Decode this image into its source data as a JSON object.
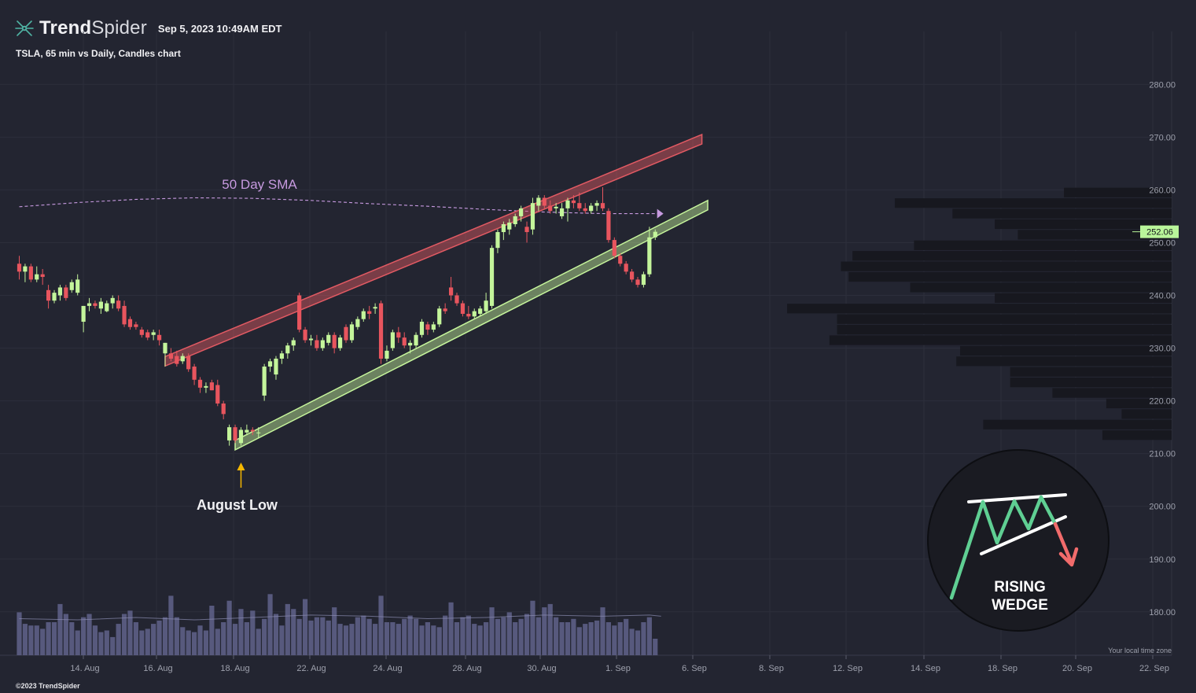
{
  "header": {
    "brand_bold": "Trend",
    "brand_light": "Spider",
    "timestamp": "Sep 5, 2023 10:49AM EDT",
    "subtitle": "TSLA, 65 min vs Daily, Candles chart",
    "copyright": "©2023 TrendSpider"
  },
  "colors": {
    "background": "#232531",
    "bull": "#c4f59b",
    "bear": "#e8555e",
    "resistance_band": "#e25a63",
    "support_band": "#c6f59c",
    "sma": "#c79ae0",
    "volume": "#5d5f86",
    "volume_profile": "#17181f",
    "price_badge": "#b9f59a",
    "annotation_arrow": "#f5b700",
    "badge_up": "#5fcf93",
    "badge_down": "#f16b6b"
  },
  "chart_data": {
    "type": "candlestick",
    "symbol": "TSLA",
    "interval": "65 min",
    "x_tick_labels": [
      "14. Aug",
      "16. Aug",
      "18. Aug",
      "22. Aug",
      "24. Aug",
      "28. Aug",
      "30. Aug",
      "1. Sep",
      "6. Sep",
      "8. Sep",
      "12. Sep",
      "14. Sep",
      "18. Sep",
      "20. Sep",
      "22. Sep"
    ],
    "y_ticks": [
      180,
      190,
      200,
      210,
      220,
      230,
      240,
      250,
      260,
      270,
      280
    ],
    "ylim": [
      172,
      289
    ],
    "last_price": "252.06",
    "local_time_note": "Your local time zone",
    "candles": [
      {
        "i": 0,
        "o": 246.0,
        "h": 247.5,
        "l": 243.0,
        "c": 244.5
      },
      {
        "i": 1,
        "o": 244.5,
        "h": 246.0,
        "l": 242.5,
        "c": 245.5
      },
      {
        "i": 2,
        "o": 245.5,
        "h": 246.0,
        "l": 242.5,
        "c": 243.0
      },
      {
        "i": 3,
        "o": 243.0,
        "h": 245.5,
        "l": 242.5,
        "c": 244.0
      },
      {
        "i": 4,
        "o": 244.0,
        "h": 245.0,
        "l": 242.0,
        "c": 243.5
      },
      {
        "i": 5,
        "o": 241.0,
        "h": 242.0,
        "l": 237.5,
        "c": 239.0
      },
      {
        "i": 6,
        "o": 239.0,
        "h": 241.0,
        "l": 238.5,
        "c": 240.5
      },
      {
        "i": 7,
        "o": 240.0,
        "h": 242.0,
        "l": 239.0,
        "c": 241.5
      },
      {
        "i": 8,
        "o": 241.5,
        "h": 242.0,
        "l": 239.0,
        "c": 239.5
      },
      {
        "i": 9,
        "o": 241.0,
        "h": 243.0,
        "l": 240.5,
        "c": 242.5
      },
      {
        "i": 10,
        "o": 240.5,
        "h": 244.0,
        "l": 240.0,
        "c": 243.0
      },
      {
        "i": 11,
        "o": 235.0,
        "h": 238.0,
        "l": 233.0,
        "c": 238.0
      },
      {
        "i": 12,
        "o": 238.0,
        "h": 239.5,
        "l": 237.0,
        "c": 238.5
      },
      {
        "i": 13,
        "o": 238.5,
        "h": 239.0,
        "l": 237.5,
        "c": 238.0
      },
      {
        "i": 14,
        "o": 237.5,
        "h": 239.5,
        "l": 236.5,
        "c": 238.8
      },
      {
        "i": 15,
        "o": 237.0,
        "h": 239.0,
        "l": 236.8,
        "c": 238.5
      },
      {
        "i": 16,
        "o": 238.5,
        "h": 240.0,
        "l": 237.5,
        "c": 239.5
      },
      {
        "i": 17,
        "o": 239.0,
        "h": 240.0,
        "l": 237.0,
        "c": 237.5
      },
      {
        "i": 18,
        "o": 238.0,
        "h": 239.0,
        "l": 234.0,
        "c": 234.5
      },
      {
        "i": 19,
        "o": 235.5,
        "h": 236.0,
        "l": 233.5,
        "c": 234.0
      },
      {
        "i": 20,
        "o": 234.5,
        "h": 235.0,
        "l": 233.5,
        "c": 234.0
      },
      {
        "i": 21,
        "o": 233.5,
        "h": 234.0,
        "l": 232.0,
        "c": 232.5
      },
      {
        "i": 22,
        "o": 233.0,
        "h": 233.5,
        "l": 231.5,
        "c": 232.0
      },
      {
        "i": 23,
        "o": 232.5,
        "h": 233.5,
        "l": 231.5,
        "c": 233.0
      },
      {
        "i": 24,
        "o": 232.5,
        "h": 233.5,
        "l": 230.5,
        "c": 231.5
      },
      {
        "i": 25,
        "o": 229.0,
        "h": 231.0,
        "l": 226.5,
        "c": 231.0
      },
      {
        "i": 26,
        "o": 229.0,
        "h": 230.0,
        "l": 227.5,
        "c": 228.0
      },
      {
        "i": 27,
        "o": 228.5,
        "h": 229.5,
        "l": 226.5,
        "c": 227.0
      },
      {
        "i": 28,
        "o": 227.5,
        "h": 229.0,
        "l": 227.0,
        "c": 228.5
      },
      {
        "i": 29,
        "o": 228.5,
        "h": 229.0,
        "l": 225.5,
        "c": 226.0
      },
      {
        "i": 30,
        "o": 226.5,
        "h": 227.0,
        "l": 223.0,
        "c": 224.0
      },
      {
        "i": 31,
        "o": 224.0,
        "h": 224.5,
        "l": 221.5,
        "c": 222.5
      },
      {
        "i": 32,
        "o": 222.5,
        "h": 223.5,
        "l": 221.5,
        "c": 222.8
      },
      {
        "i": 33,
        "o": 223.5,
        "h": 224.0,
        "l": 222.0,
        "c": 222.0
      },
      {
        "i": 34,
        "o": 223.0,
        "h": 224.0,
        "l": 219.0,
        "c": 219.5
      },
      {
        "i": 35,
        "o": 219.5,
        "h": 220.0,
        "l": 216.5,
        "c": 217.5
      },
      {
        "i": 36,
        "o": 212.5,
        "h": 215.5,
        "l": 211.5,
        "c": 215.0
      },
      {
        "i": 37,
        "o": 215.0,
        "h": 215.5,
        "l": 212.0,
        "c": 212.5
      },
      {
        "i": 38,
        "o": 212.0,
        "h": 215.0,
        "l": 211.5,
        "c": 214.5
      },
      {
        "i": 39,
        "o": 214.0,
        "h": 215.5,
        "l": 213.5,
        "c": 214.5
      },
      {
        "i": 40,
        "o": 214.5,
        "h": 215.0,
        "l": 213.5,
        "c": 214.2
      },
      {
        "i": 41,
        "o": 214.0,
        "h": 215.0,
        "l": 213.0,
        "c": 214.0
      },
      {
        "i": 42,
        "o": 221.0,
        "h": 227.0,
        "l": 220.0,
        "c": 226.5
      },
      {
        "i": 43,
        "o": 226.5,
        "h": 228.0,
        "l": 225.5,
        "c": 227.5
      },
      {
        "i": 44,
        "o": 225.0,
        "h": 228.5,
        "l": 224.0,
        "c": 228.0
      },
      {
        "i": 45,
        "o": 228.0,
        "h": 229.5,
        "l": 227.0,
        "c": 229.0
      },
      {
        "i": 46,
        "o": 229.0,
        "h": 231.0,
        "l": 228.0,
        "c": 230.5
      },
      {
        "i": 47,
        "o": 230.5,
        "h": 232.0,
        "l": 229.5,
        "c": 231.5
      },
      {
        "i": 48,
        "o": 240.0,
        "h": 240.5,
        "l": 233.0,
        "c": 233.5
      },
      {
        "i": 49,
        "o": 233.5,
        "h": 234.0,
        "l": 231.0,
        "c": 231.5
      },
      {
        "i": 50,
        "o": 231.5,
        "h": 232.5,
        "l": 230.5,
        "c": 231.8
      },
      {
        "i": 51,
        "o": 231.5,
        "h": 232.5,
        "l": 229.5,
        "c": 230.0
      },
      {
        "i": 52,
        "o": 230.0,
        "h": 232.0,
        "l": 229.5,
        "c": 231.5
      },
      {
        "i": 53,
        "o": 231.0,
        "h": 233.0,
        "l": 230.5,
        "c": 232.5
      },
      {
        "i": 54,
        "o": 232.5,
        "h": 233.0,
        "l": 229.0,
        "c": 230.0
      },
      {
        "i": 55,
        "o": 230.0,
        "h": 232.5,
        "l": 229.5,
        "c": 232.0
      },
      {
        "i": 56,
        "o": 234.0,
        "h": 234.5,
        "l": 231.0,
        "c": 231.5
      },
      {
        "i": 57,
        "o": 231.5,
        "h": 235.0,
        "l": 231.0,
        "c": 234.5
      },
      {
        "i": 58,
        "o": 234.0,
        "h": 236.0,
        "l": 233.5,
        "c": 235.5
      },
      {
        "i": 59,
        "o": 235.5,
        "h": 237.5,
        "l": 235.0,
        "c": 237.0
      },
      {
        "i": 60,
        "o": 237.0,
        "h": 238.0,
        "l": 235.5,
        "c": 236.5
      },
      {
        "i": 61,
        "o": 237.5,
        "h": 238.5,
        "l": 236.5,
        "c": 237.8
      },
      {
        "i": 62,
        "o": 238.5,
        "h": 239.0,
        "l": 227.0,
        "c": 228.0
      },
      {
        "i": 63,
        "o": 228.0,
        "h": 230.5,
        "l": 227.5,
        "c": 229.5
      },
      {
        "i": 64,
        "o": 230.0,
        "h": 233.5,
        "l": 229.5,
        "c": 233.0
      },
      {
        "i": 65,
        "o": 233.0,
        "h": 234.0,
        "l": 231.0,
        "c": 232.0
      },
      {
        "i": 66,
        "o": 232.0,
        "h": 233.0,
        "l": 230.0,
        "c": 230.5
      },
      {
        "i": 67,
        "o": 230.5,
        "h": 231.5,
        "l": 229.0,
        "c": 231.0
      },
      {
        "i": 68,
        "o": 230.5,
        "h": 233.0,
        "l": 230.0,
        "c": 232.5
      },
      {
        "i": 69,
        "o": 232.5,
        "h": 235.5,
        "l": 232.0,
        "c": 235.0
      },
      {
        "i": 70,
        "o": 234.5,
        "h": 235.0,
        "l": 232.5,
        "c": 233.5
      },
      {
        "i": 71,
        "o": 233.5,
        "h": 235.0,
        "l": 233.0,
        "c": 234.5
      },
      {
        "i": 72,
        "o": 234.5,
        "h": 238.0,
        "l": 234.0,
        "c": 237.5
      },
      {
        "i": 73,
        "o": 237.5,
        "h": 238.5,
        "l": 236.5,
        "c": 237.0
      },
      {
        "i": 74,
        "o": 241.5,
        "h": 243.5,
        "l": 239.0,
        "c": 240.0
      },
      {
        "i": 75,
        "o": 240.0,
        "h": 240.5,
        "l": 238.0,
        "c": 238.5
      },
      {
        "i": 76,
        "o": 238.5,
        "h": 239.0,
        "l": 236.0,
        "c": 236.5
      },
      {
        "i": 77,
        "o": 236.5,
        "h": 238.0,
        "l": 235.5,
        "c": 236.0
      },
      {
        "i": 78,
        "o": 236.0,
        "h": 237.5,
        "l": 235.5,
        "c": 237.0
      },
      {
        "i": 79,
        "o": 236.5,
        "h": 238.0,
        "l": 236.0,
        "c": 237.5
      },
      {
        "i": 80,
        "o": 237.0,
        "h": 240.5,
        "l": 236.5,
        "c": 239.0
      },
      {
        "i": 81,
        "o": 238.0,
        "h": 249.5,
        "l": 237.5,
        "c": 249.0
      },
      {
        "i": 82,
        "o": 249.0,
        "h": 252.5,
        "l": 248.0,
        "c": 252.0
      },
      {
        "i": 83,
        "o": 252.0,
        "h": 254.0,
        "l": 250.5,
        "c": 253.5
      },
      {
        "i": 84,
        "o": 252.5,
        "h": 254.5,
        "l": 251.5,
        "c": 253.8
      },
      {
        "i": 85,
        "o": 253.5,
        "h": 255.5,
        "l": 253.0,
        "c": 255.0
      },
      {
        "i": 86,
        "o": 255.0,
        "h": 257.0,
        "l": 254.0,
        "c": 256.5
      },
      {
        "i": 87,
        "o": 253.0,
        "h": 254.0,
        "l": 250.0,
        "c": 252.0
      },
      {
        "i": 88,
        "o": 252.5,
        "h": 258.5,
        "l": 251.5,
        "c": 257.5
      },
      {
        "i": 89,
        "o": 257.0,
        "h": 259.0,
        "l": 256.0,
        "c": 258.5
      },
      {
        "i": 90,
        "o": 258.5,
        "h": 259.0,
        "l": 256.5,
        "c": 257.0
      },
      {
        "i": 91,
        "o": 257.0,
        "h": 258.0,
        "l": 255.5,
        "c": 256.0
      },
      {
        "i": 92,
        "o": 256.5,
        "h": 257.5,
        "l": 255.5,
        "c": 256.8
      },
      {
        "i": 93,
        "o": 255.0,
        "h": 257.5,
        "l": 254.5,
        "c": 256.5
      },
      {
        "i": 94,
        "o": 256.5,
        "h": 258.5,
        "l": 254.0,
        "c": 258.0
      },
      {
        "i": 95,
        "o": 258.0,
        "h": 259.0,
        "l": 256.5,
        "c": 257.5
      },
      {
        "i": 96,
        "o": 257.5,
        "h": 259.5,
        "l": 256.0,
        "c": 256.5
      },
      {
        "i": 97,
        "o": 256.5,
        "h": 257.5,
        "l": 255.5,
        "c": 256.0
      },
      {
        "i": 98,
        "o": 256.0,
        "h": 257.5,
        "l": 255.5,
        "c": 257.0
      },
      {
        "i": 99,
        "o": 257.0,
        "h": 258.0,
        "l": 256.0,
        "c": 257.5
      },
      {
        "i": 100,
        "o": 257.5,
        "h": 260.5,
        "l": 256.0,
        "c": 256.5
      },
      {
        "i": 101,
        "o": 256.0,
        "h": 256.5,
        "l": 250.0,
        "c": 250.5
      },
      {
        "i": 102,
        "o": 250.5,
        "h": 251.0,
        "l": 247.0,
        "c": 247.5
      },
      {
        "i": 103,
        "o": 247.5,
        "h": 248.0,
        "l": 245.5,
        "c": 246.0
      },
      {
        "i": 104,
        "o": 246.0,
        "h": 246.5,
        "l": 244.0,
        "c": 244.5
      },
      {
        "i": 105,
        "o": 244.5,
        "h": 245.0,
        "l": 242.5,
        "c": 243.0
      },
      {
        "i": 106,
        "o": 243.0,
        "h": 243.5,
        "l": 241.5,
        "c": 242.0
      },
      {
        "i": 107,
        "o": 242.0,
        "h": 244.5,
        "l": 241.5,
        "c": 244.0
      },
      {
        "i": 108,
        "o": 244.0,
        "h": 253.0,
        "l": 243.5,
        "c": 251.0
      },
      {
        "i": 109,
        "o": 251.0,
        "h": 252.5,
        "l": 250.5,
        "c": 252.06
      }
    ],
    "volume": {
      "axis_max": 120,
      "values": [
        52,
        38,
        36,
        36,
        32,
        40,
        40,
        62,
        50,
        40,
        30,
        46,
        50,
        36,
        28,
        30,
        22,
        38,
        50,
        54,
        40,
        30,
        32,
        38,
        42,
        46,
        72,
        46,
        34,
        30,
        28,
        36,
        30,
        60,
        32,
        40,
        66,
        38,
        56,
        40,
        54,
        32,
        44,
        74,
        50,
        36,
        62,
        56,
        44,
        68,
        42,
        46,
        46,
        42,
        58,
        38,
        36,
        38,
        46,
        48,
        44,
        38,
        72,
        40,
        40,
        38,
        44,
        48,
        44,
        36,
        40,
        36,
        34,
        48,
        64,
        40,
        46,
        48,
        38,
        36,
        40,
        58,
        44,
        46,
        52,
        40,
        44,
        50,
        66,
        46,
        58,
        62,
        46,
        40,
        40,
        44,
        34,
        38,
        40,
        42,
        58,
        40,
        36,
        40,
        44,
        32,
        30,
        40,
        46,
        20
      ],
      "ma": [
        {
          "i": 0,
          "v": 30
        },
        {
          "i": 10,
          "v": 29
        },
        {
          "i": 20,
          "v": 31
        },
        {
          "i": 30,
          "v": 29
        },
        {
          "i": 40,
          "v": 31
        },
        {
          "i": 50,
          "v": 33
        },
        {
          "i": 60,
          "v": 32
        },
        {
          "i": 70,
          "v": 30
        },
        {
          "i": 80,
          "v": 31
        },
        {
          "i": 90,
          "v": 33
        },
        {
          "i": 100,
          "v": 32
        },
        {
          "i": 108,
          "v": 33
        },
        {
          "i": 110,
          "v": 32
        }
      ]
    },
    "sma50": {
      "label": "50 Day SMA",
      "points": [
        {
          "i": 0,
          "v": 256.8
        },
        {
          "i": 10,
          "v": 257.6
        },
        {
          "i": 20,
          "v": 258.2
        },
        {
          "i": 30,
          "v": 258.5
        },
        {
          "i": 40,
          "v": 258.4
        },
        {
          "i": 50,
          "v": 258.0
        },
        {
          "i": 60,
          "v": 257.4
        },
        {
          "i": 70,
          "v": 256.9
        },
        {
          "i": 80,
          "v": 256.3
        },
        {
          "i": 90,
          "v": 255.8
        },
        {
          "i": 100,
          "v": 255.5
        },
        {
          "i": 110,
          "v": 255.5
        }
      ]
    },
    "trendlines": {
      "resistance": {
        "from": {
          "i": 25,
          "v": 227.5
        },
        "to": {
          "i": 117,
          "v": 269.6
        }
      },
      "support": {
        "from": {
          "i": 37,
          "v": 211.6
        },
        "to": {
          "i": 118,
          "v": 257.1
        }
      }
    },
    "volume_profile": [
      {
        "price": 259.5,
        "size": 0.28
      },
      {
        "price": 257.5,
        "size": 0.72
      },
      {
        "price": 255.5,
        "size": 0.57
      },
      {
        "price": 253.5,
        "size": 0.46
      },
      {
        "price": 251.5,
        "size": 0.4
      },
      {
        "price": 249.5,
        "size": 0.67
      },
      {
        "price": 247.5,
        "size": 0.83
      },
      {
        "price": 245.5,
        "size": 0.86
      },
      {
        "price": 243.5,
        "size": 0.84
      },
      {
        "price": 241.5,
        "size": 0.68
      },
      {
        "price": 239.5,
        "size": 0.46
      },
      {
        "price": 237.5,
        "size": 1.0
      },
      {
        "price": 235.5,
        "size": 0.87
      },
      {
        "price": 233.5,
        "size": 0.87
      },
      {
        "price": 231.5,
        "size": 0.89
      },
      {
        "price": 229.5,
        "size": 0.55
      },
      {
        "price": 227.5,
        "size": 0.56
      },
      {
        "price": 225.5,
        "size": 0.42
      },
      {
        "price": 223.5,
        "size": 0.42
      },
      {
        "price": 221.5,
        "size": 0.31
      },
      {
        "price": 219.5,
        "size": 0.17
      },
      {
        "price": 217.5,
        "size": 0.13
      },
      {
        "price": 215.5,
        "size": 0.49
      },
      {
        "price": 213.5,
        "size": 0.18
      }
    ],
    "annotations": {
      "august_low": {
        "label": "August Low",
        "i": 38,
        "v": 212
      }
    },
    "pattern_badge": {
      "line1": "RISING",
      "line2": "WEDGE"
    }
  }
}
